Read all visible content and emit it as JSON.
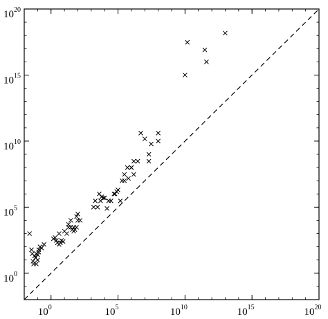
{
  "chart_data": {
    "type": "scatter",
    "title": "",
    "xlabel": "",
    "ylabel": "",
    "x_scale": "log",
    "y_scale": "log",
    "xlim": [
      0.01,
      1e+20
    ],
    "ylim": [
      0.01,
      1e+20
    ],
    "x_ticks": [
      {
        "base": "10",
        "exp": "0",
        "value": 1
      },
      {
        "base": "10",
        "exp": "5",
        "value": 100000.0
      },
      {
        "base": "10",
        "exp": "10",
        "value": 10000000000.0
      },
      {
        "base": "10",
        "exp": "15",
        "value": 1000000000000000.0
      },
      {
        "base": "10",
        "exp": "20",
        "value": 1e+20
      }
    ],
    "y_ticks": [
      {
        "base": "10",
        "exp": "0",
        "value": 1
      },
      {
        "base": "10",
        "exp": "5",
        "value": 100000.0
      },
      {
        "base": "10",
        "exp": "10",
        "value": 10000000000.0
      },
      {
        "base": "10",
        "exp": "15",
        "value": 1000000000000000.0
      },
      {
        "base": "10",
        "exp": "20",
        "value": 1e+20
      }
    ],
    "grid": false,
    "legend": "none",
    "marker": "x",
    "reference_line": {
      "style": "dashed",
      "x": [
        0.01,
        1e+20
      ],
      "y": [
        0.01,
        1e+20
      ]
    },
    "series": [
      {
        "x": [
          0.025,
          0.035,
          0.04,
          0.045,
          0.05,
          0.06,
          0.07,
          0.08,
          0.1,
          0.12,
          0.15,
          0.2,
          0.3,
          0.1,
          0.08,
          0.12,
          1.5,
          2.5,
          3,
          4,
          5,
          6,
          8,
          2,
          4,
          10,
          15,
          20,
          30,
          40,
          50,
          60,
          80,
          100,
          150,
          20,
          30,
          50,
          80,
          100,
          1500.0,
          2000.0,
          3000.0,
          4000.0,
          5000.0,
          6000.0,
          8000.0,
          10000.0,
          15000.0,
          20000.0,
          30000.0,
          50000.0,
          60000.0,
          80000.0,
          100000.0,
          150000.0,
          200000.0,
          300000.0,
          500000.0,
          1000000.0,
          1500000.0,
          3000000.0,
          300000.0,
          600000.0,
          1000000.0,
          1500000.0,
          5000000.0,
          10000000.0,
          20000000.0,
          20000000.0,
          30000000.0,
          100000000.0,
          100000000.0,
          10000000000.0,
          15000000000.0,
          300000000000.0,
          400000000000.0,
          10000000000000.0
        ],
        "y": [
          1000.0,
          60,
          30,
          8,
          5,
          20,
          15,
          30,
          25,
          60,
          100,
          80,
          150,
          10,
          5,
          40,
          400,
          300,
          200,
          150,
          200,
          300,
          250,
          500,
          1000.0,
          1500.0,
          1000.0,
          3000.0,
          3000.0,
          2000.0,
          1500.0,
          2000.0,
          3000.0,
          10000.0,
          10000.0,
          5000.0,
          10000.0,
          3000.0,
          20000.0,
          30000.0,
          100000.0,
          300000.0,
          100000.0,
          1000000.0,
          300000.0,
          600000.0,
          500000.0,
          500000.0,
          80000.0,
          300000.0,
          300000.0,
          1000000.0,
          1000000.0,
          1500000.0,
          2000000.0,
          300000.0,
          10000000.0,
          30000000.0,
          100000000.0,
          100000000.0,
          300000000.0,
          300000000.0,
          10000000.0,
          15000000.0,
          100000000.0,
          30000000.0,
          40000000000.0,
          15000000000.0,
          1000000000.0,
          300000000.0,
          6000000000.0,
          40000000000.0,
          10000000000.0,
          1000000000000000.0,
          3e+17,
          8e+16,
          1e+16,
          1.5e+18
        ]
      }
    ]
  }
}
